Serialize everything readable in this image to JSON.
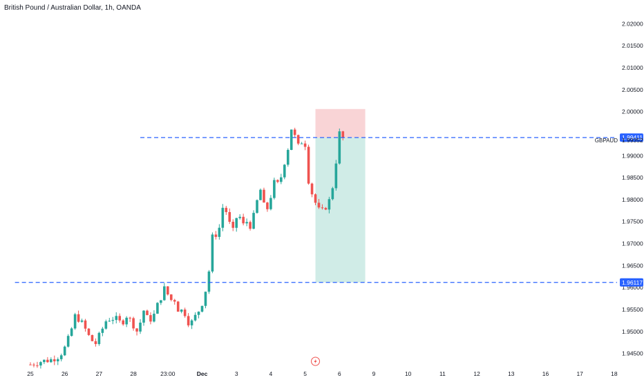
{
  "header": {
    "title": "British Pound / Australian Dollar, 1h, OANDA"
  },
  "colors": {
    "up": "#26a69a",
    "down": "#ef5350",
    "level_line": "#2962ff",
    "stop_zone": "#f7c9cc",
    "target_zone": "#c8e9e3",
    "axis_text": "#131722",
    "badge_bg": "#2962ff",
    "badge_text": "#ffffff",
    "event_icon": "#ef5350"
  },
  "icons": {
    "event_marker": "lightning-bolt-icon"
  },
  "chart_data": {
    "type": "candlestick",
    "symbol_label": "GBPAUD",
    "ylim": [
      1.9415,
      2.0235
    ],
    "y_ticks": [
      "2.02000",
      "2.01500",
      "2.01000",
      "2.00500",
      "2.00000",
      "1.99000",
      "1.98500",
      "1.98000",
      "1.97500",
      "1.97000",
      "1.96500",
      "1.96000",
      "1.95500",
      "1.95000",
      "1.94500"
    ],
    "y_tick_values": [
      2.02,
      2.015,
      2.01,
      2.005,
      2.0,
      1.99,
      1.985,
      1.98,
      1.975,
      1.97,
      1.965,
      1.96,
      1.955,
      1.95,
      1.945
    ],
    "x_ticks": [
      "25",
      "26",
      "27",
      "28",
      "23:00",
      "Dec",
      "3",
      "4",
      "5",
      "6",
      "9",
      "10",
      "11",
      "12",
      "13",
      "16",
      "17",
      "18"
    ],
    "bold_x_ticks": [
      "Dec"
    ],
    "levels": [
      {
        "price": 1.99411,
        "label": "1.99411",
        "from_x": 3.2
      },
      {
        "price": 1.96117,
        "label": "1.96117",
        "from_x": -0.45
      }
    ],
    "last_price": {
      "price": 1.99352,
      "label": "1.99352",
      "symbol": "GBPAUD"
    },
    "position": {
      "entry": 1.99411,
      "stop": 2.0006,
      "target": 1.96117,
      "x_start": 8.3,
      "x_end": 9.75
    },
    "event_marker_x": 8.3,
    "path": [
      [
        0.0,
        1.9425
      ],
      [
        0.3,
        1.9432
      ],
      [
        0.6,
        1.9436
      ],
      [
        0.85,
        1.9445
      ],
      [
        1.0,
        1.9463
      ],
      [
        1.15,
        1.9492
      ],
      [
        1.3,
        1.9535
      ],
      [
        1.45,
        1.9526
      ],
      [
        1.6,
        1.9505
      ],
      [
        1.75,
        1.9482
      ],
      [
        1.9,
        1.9473
      ],
      [
        2.05,
        1.9498
      ],
      [
        2.2,
        1.9524
      ],
      [
        2.35,
        1.9531
      ],
      [
        2.5,
        1.9528
      ],
      [
        2.65,
        1.9518
      ],
      [
        2.8,
        1.9536
      ],
      [
        2.95,
        1.9522
      ],
      [
        3.1,
        1.9501
      ],
      [
        3.2,
        1.9521
      ],
      [
        3.3,
        1.9548
      ],
      [
        3.4,
        1.9531
      ],
      [
        3.55,
        1.9527
      ],
      [
        3.7,
        1.956
      ],
      [
        3.85,
        1.9587
      ],
      [
        3.95,
        1.9608
      ],
      [
        4.05,
        1.9561
      ],
      [
        4.15,
        1.9583
      ],
      [
        4.25,
        1.9562
      ],
      [
        4.35,
        1.954
      ],
      [
        4.45,
        1.9556
      ],
      [
        4.55,
        1.9527
      ],
      [
        4.65,
        1.9517
      ],
      [
        4.75,
        1.9526
      ],
      [
        4.85,
        1.9543
      ],
      [
        4.95,
        1.9552
      ],
      [
        5.05,
        1.9578
      ],
      [
        5.12,
        1.96
      ],
      [
        5.18,
        1.961
      ],
      [
        5.22,
        1.9665
      ],
      [
        5.28,
        1.9715
      ],
      [
        5.35,
        1.9712
      ],
      [
        5.42,
        1.9725
      ],
      [
        5.5,
        1.9736
      ],
      [
        5.6,
        1.9782
      ],
      [
        5.7,
        1.9773
      ],
      [
        5.8,
        1.9745
      ],
      [
        5.9,
        1.9728
      ],
      [
        6.0,
        1.9759
      ],
      [
        6.1,
        1.976
      ],
      [
        6.2,
        1.9742
      ],
      [
        6.3,
        1.975
      ],
      [
        6.4,
        1.9741
      ],
      [
        6.5,
        1.9762
      ],
      [
        6.6,
        1.9796
      ],
      [
        6.7,
        1.9822
      ],
      [
        6.8,
        1.9786
      ],
      [
        6.9,
        1.978
      ],
      [
        7.0,
        1.9808
      ],
      [
        7.1,
        1.9838
      ],
      [
        7.2,
        1.9835
      ],
      [
        7.3,
        1.9852
      ],
      [
        7.4,
        1.9886
      ],
      [
        7.5,
        1.9917
      ],
      [
        7.6,
        1.9962
      ],
      [
        7.7,
        1.9943
      ],
      [
        7.8,
        1.9921
      ],
      [
        7.9,
        1.9932
      ],
      [
        8.0,
        1.9926
      ],
      [
        8.05,
        1.9862
      ],
      [
        8.15,
        1.9826
      ],
      [
        8.25,
        1.9803
      ],
      [
        8.35,
        1.9783
      ],
      [
        8.45,
        1.9769
      ],
      [
        8.55,
        1.9779
      ],
      [
        8.65,
        1.9789
      ],
      [
        8.75,
        1.9806
      ],
      [
        8.85,
        1.9853
      ],
      [
        8.95,
        1.9922
      ],
      [
        9.02,
        1.9962
      ],
      [
        9.08,
        1.9944
      ],
      [
        9.12,
        1.99352
      ]
    ]
  }
}
